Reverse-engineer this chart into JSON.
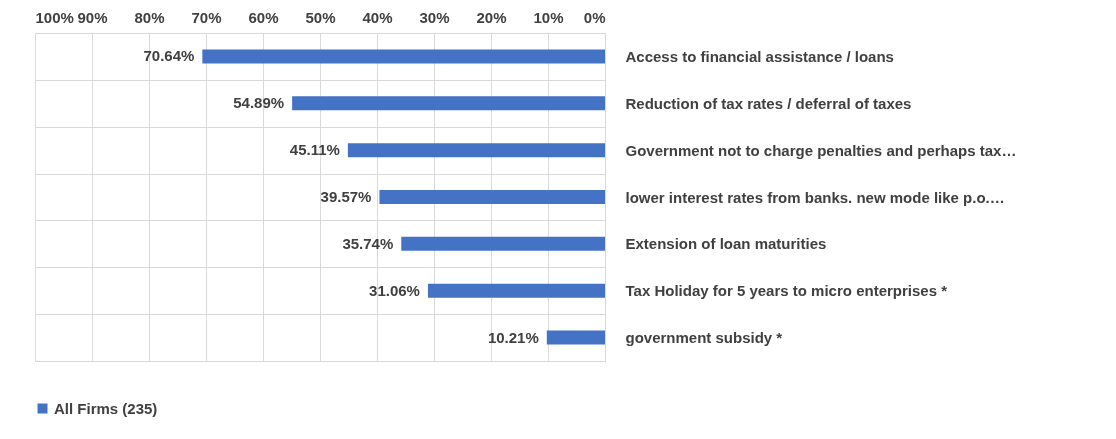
{
  "chart_data": {
    "type": "bar",
    "orientation": "horizontal",
    "categories": [
      "Access to financial assistance / loans",
      "Reduction of tax rates / deferral of taxes",
      "Government not to charge penalties and perhaps tax…",
      "lower interest rates from banks. new mode like p.o.…",
      "Extension of loan maturities",
      "Tax Holiday for 5 years to micro enterprises *",
      "government subsidy *"
    ],
    "series": [
      {
        "name": "All Firms (235)",
        "color": "#4472c4",
        "values": [
          70.64,
          54.89,
          45.11,
          39.57,
          35.74,
          31.06,
          10.21
        ],
        "value_labels": [
          "70.64%",
          "54.89%",
          "45.11%",
          "39.57%",
          "35.74%",
          "31.06%",
          "10.21%"
        ]
      }
    ],
    "xlim": [
      100,
      0
    ],
    "xticks": [
      {
        "value": 100,
        "label": "100%"
      },
      {
        "value": 90,
        "label": "90%"
      },
      {
        "value": 80,
        "label": "80%"
      },
      {
        "value": 70,
        "label": "70%"
      },
      {
        "value": 60,
        "label": "60%"
      },
      {
        "value": 50,
        "label": "50%"
      },
      {
        "value": 40,
        "label": "40%"
      },
      {
        "value": 30,
        "label": "30%"
      },
      {
        "value": 20,
        "label": "20%"
      },
      {
        "value": 10,
        "label": "10%"
      },
      {
        "value": 0,
        "label": "0%"
      }
    ],
    "grid": true,
    "legend": "bottom"
  }
}
